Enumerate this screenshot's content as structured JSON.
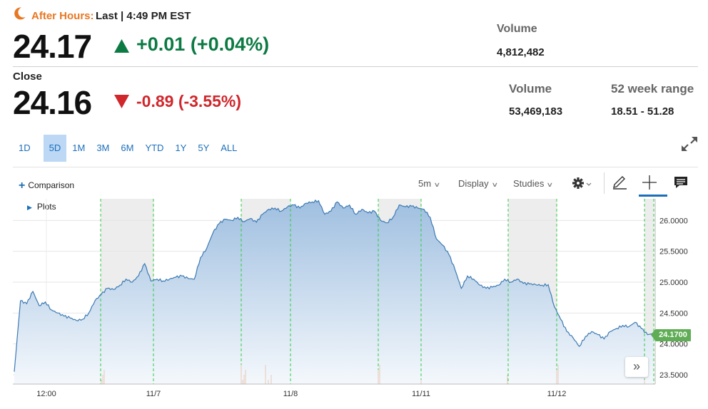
{
  "after_hours": {
    "label": "After Hours:",
    "last_text": "Last | 4:49 PM EST",
    "price": "24.17",
    "change": "+0.01 (+0.04%)",
    "direction": "up",
    "volume_label": "Volume",
    "volume_value": "4,812,482"
  },
  "close": {
    "label": "Close",
    "price": "24.16",
    "change": "-0.89 (-3.55%)",
    "direction": "down",
    "volume_label": "Volume",
    "volume_value": "53,469,183",
    "range_label": "52 week range",
    "range_value": "18.51 - 51.28"
  },
  "range_tabs": [
    "1D",
    "5D",
    "1M",
    "3M",
    "6M",
    "YTD",
    "1Y",
    "5Y",
    "ALL"
  ],
  "active_range": "5D",
  "toolbar": {
    "comparison": "Comparison",
    "plots": "Plots",
    "interval": "5m",
    "display": "Display",
    "studies": "Studies"
  },
  "icons": [
    "moon-icon",
    "up-arrow-icon",
    "down-arrow-icon",
    "expand-icon",
    "plus-icon",
    "gear-icon",
    "pencil-icon",
    "crosshair-icon",
    "comment-icon",
    "double-chevron-right-icon"
  ],
  "colors": {
    "after_hours_label": "#e87722",
    "positive": "#0c7a43",
    "negative": "#d0272c",
    "link": "#1b6fba",
    "active_tab_bg": "#bcd8f5",
    "line": "#3d7ab3",
    "area_top": "#9fbfe0",
    "area_bottom": "#f4f8fc",
    "session_divider": "#2ecc40",
    "extended_hours_shade": "#ededed",
    "price_tag": "#5fad55"
  },
  "chart_data": {
    "type": "area",
    "ylim": [
      23.35,
      26.35
    ],
    "y_ticks": [
      "26.0000",
      "25.5000",
      "25.0000",
      "24.5000",
      "24.0000",
      "23.5000"
    ],
    "y_tick_values": [
      26.0,
      25.5,
      25.0,
      24.5,
      24.0,
      23.5
    ],
    "x_ticks": [
      "12:00",
      "11/7",
      "11/8",
      "11/11",
      "11/12"
    ],
    "last_price_tag": "24.1700",
    "series": [
      {
        "values": [
          23.55,
          24.7,
          24.65,
          24.85,
          24.62,
          24.68,
          24.55,
          24.5,
          24.45,
          24.42,
          24.38,
          24.4,
          24.5,
          24.7,
          24.8,
          24.9,
          24.88,
          24.95,
          25.05,
          25.0,
          25.1,
          25.3,
          25.02,
          25.05,
          25.02,
          25.05,
          25.08,
          25.1,
          25.06,
          25.05,
          25.4,
          25.55,
          25.8,
          25.95,
          26.02,
          26.0,
          26.05,
          25.98,
          26.03,
          25.97,
          26.1,
          26.18,
          26.2,
          26.15,
          26.22,
          26.25,
          26.2,
          26.28,
          26.3,
          26.32,
          26.1,
          26.15,
          26.3,
          26.2,
          26.25,
          26.1,
          26.18,
          26.12,
          26.15,
          26.0,
          25.96,
          26.05,
          26.25,
          26.22,
          26.23,
          26.2,
          26.18,
          26.05,
          25.7,
          25.6,
          25.45,
          25.2,
          24.9,
          25.1,
          25.05,
          24.95,
          24.9,
          24.92,
          24.95,
          25.05,
          25.0,
          25.05,
          24.98,
          24.97,
          24.96,
          24.95,
          24.96,
          24.6,
          24.4,
          24.2,
          24.1,
          23.96,
          24.12,
          24.2,
          24.15,
          24.08,
          24.2,
          24.25,
          24.3,
          24.28,
          24.35,
          24.25,
          24.15,
          24.17
        ]
      }
    ]
  }
}
